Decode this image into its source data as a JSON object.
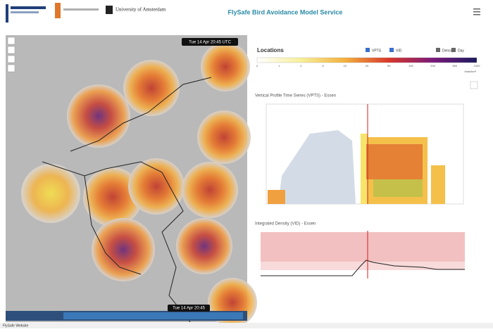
{
  "header": {
    "institution": "University of Amsterdam",
    "title": "FlySafe Bird Avoidance Model Service"
  },
  "map": {
    "timestamp_top": "Tue 14 Apr 20:45 UTC",
    "timestamp_bottom": "Tue 14 Apr 20:45"
  },
  "panel": {
    "heading": "Locations",
    "toggles": [
      "VPTS",
      "VID",
      "Density",
      "Day"
    ],
    "colorbar": {
      "ticks": [
        "0",
        "1",
        "2",
        "5",
        "10",
        "20",
        "50",
        "100",
        "200",
        "500",
        "1000"
      ],
      "unit": "birds/km³"
    },
    "vpts_title": "Vertical Profile Time Series (VPTS) - Essen",
    "vid_title": "Integrated Density (VID) - Essen"
  },
  "footer": {
    "link": "FlySafe Website"
  }
}
